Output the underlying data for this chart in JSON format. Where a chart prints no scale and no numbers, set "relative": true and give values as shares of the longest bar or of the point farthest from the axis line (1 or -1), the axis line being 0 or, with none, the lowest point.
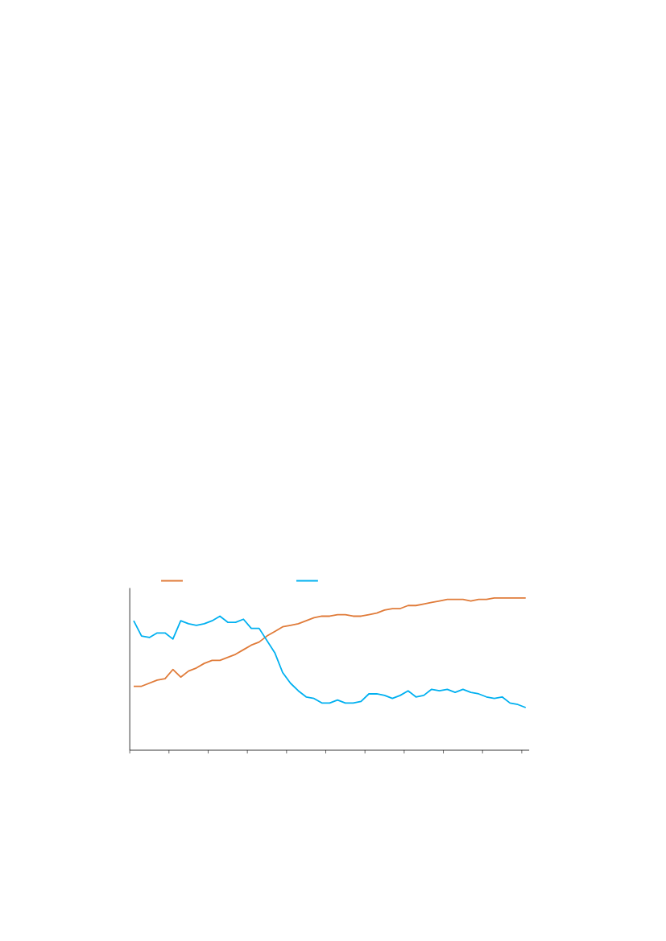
{
  "chart_data": {
    "type": "line",
    "relative": true,
    "marker": "none",
    "line_style": "solid",
    "grid": false,
    "categories": [
      null,
      null,
      null,
      null,
      null,
      null,
      null,
      null,
      null,
      null,
      null,
      null,
      null,
      null,
      null,
      null,
      null,
      null,
      null,
      null,
      null,
      null,
      null,
      null,
      null,
      null,
      null,
      null,
      null,
      null,
      null,
      null,
      null,
      null,
      null,
      null,
      null,
      null,
      null,
      null,
      null,
      null,
      null,
      null,
      null,
      null,
      null,
      null,
      null,
      null,
      null
    ],
    "series": [
      {
        "color": "#e07b39",
        "values": [
          0.42,
          0.42,
          0.44,
          0.46,
          0.47,
          0.53,
          0.48,
          0.52,
          0.54,
          0.57,
          0.59,
          0.59,
          0.61,
          0.63,
          0.66,
          0.69,
          0.71,
          0.75,
          0.78,
          0.81,
          0.82,
          0.83,
          0.85,
          0.87,
          0.88,
          0.88,
          0.89,
          0.89,
          0.88,
          0.88,
          0.89,
          0.9,
          0.92,
          0.93,
          0.93,
          0.95,
          0.95,
          0.96,
          0.97,
          0.98,
          0.99,
          0.99,
          0.99,
          0.98,
          0.99,
          0.99,
          1.0,
          1.0,
          1.0,
          1.0,
          1.0
        ]
      },
      {
        "color": "#00b0f0",
        "values": [
          0.85,
          0.75,
          0.74,
          0.77,
          0.77,
          0.73,
          0.85,
          0.83,
          0.82,
          0.83,
          0.85,
          0.88,
          0.84,
          0.84,
          0.86,
          0.8,
          0.8,
          0.72,
          0.64,
          0.51,
          0.44,
          0.39,
          0.35,
          0.34,
          0.31,
          0.31,
          0.33,
          0.31,
          0.31,
          0.32,
          0.37,
          0.37,
          0.36,
          0.34,
          0.36,
          0.39,
          0.35,
          0.36,
          0.4,
          0.39,
          0.4,
          0.38,
          0.4,
          0.38,
          0.37,
          0.35,
          0.34,
          0.35,
          0.31,
          0.3,
          0.28
        ]
      }
    ]
  }
}
